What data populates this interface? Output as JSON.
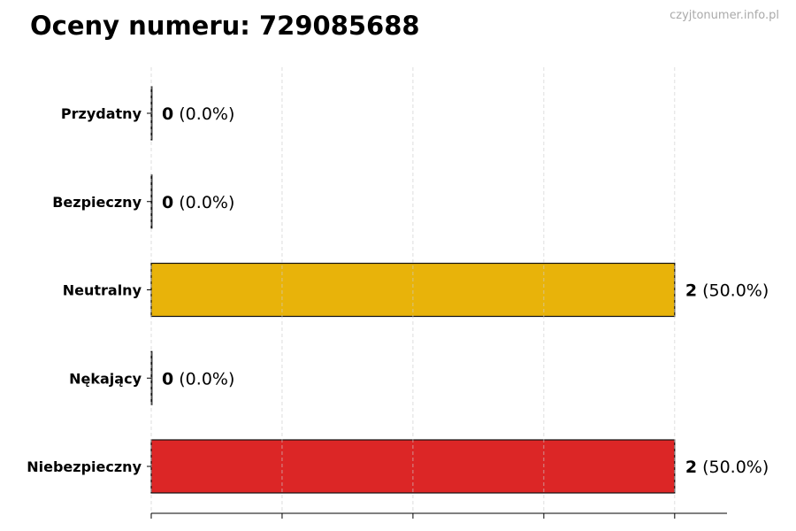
{
  "title": "Oceny numeru: 729085688",
  "watermark": "czyjtonumer.info.pl",
  "chart_data": {
    "type": "bar",
    "orientation": "horizontal",
    "categories": [
      "Przydatny",
      "Bezpieczny",
      "Neutralny",
      "Nękający",
      "Niebezpieczny"
    ],
    "values": [
      0,
      0,
      2,
      0,
      2
    ],
    "percent_labels": [
      "(0.0%)",
      "(0.0%)",
      "(50.0%)",
      "(0.0%)",
      "(50.0%)"
    ],
    "colors": [
      "#4caf50",
      "#2e7d32",
      "#e8b30a",
      "#f57c00",
      "#dc2626"
    ],
    "xlim": [
      0,
      2.2
    ],
    "x_gridlines": [
      0,
      0.5,
      1,
      1.5,
      2
    ],
    "x_tick_labels_shown": false,
    "grid": true,
    "xlabel": "",
    "ylabel": ""
  }
}
